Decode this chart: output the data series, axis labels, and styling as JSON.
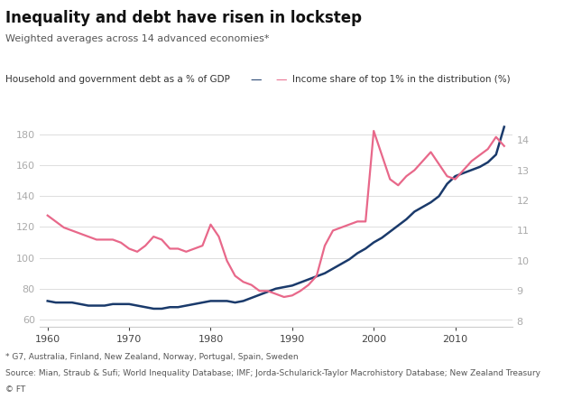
{
  "title": "Inequality and debt have risen in lockstep",
  "subtitle": "Weighted averages across 14 advanced economies*",
  "left_label": "Household and government debt as a % of GDP",
  "right_label": "Income share of top 1% in the distribution (%)",
  "footnote1": "* G7, Australia, Finland, New Zealand, Norway, Portugal, Spain, Sweden",
  "footnote2": "Source: Mian, Straub & Sufi; World Inequality Database; IMF; Jorda-Schularick-Taylor Macrohistory Database; New Zealand Treasury",
  "footnote3": "© FT",
  "debt_color": "#1a3a6b",
  "inequality_color": "#e8688a",
  "background_color": "#ffffff",
  "grid_color": "#dddddd",
  "ylim_left": [
    55,
    200
  ],
  "ylim_right": [
    7.8,
    15.2
  ],
  "yticks_left": [
    60,
    80,
    100,
    120,
    140,
    160,
    180
  ],
  "yticks_right": [
    8,
    9,
    10,
    11,
    12,
    13,
    14
  ],
  "xlim": [
    1959,
    2017
  ],
  "xticks": [
    1960,
    1970,
    1980,
    1990,
    2000,
    2010
  ],
  "debt_years": [
    1960,
    1961,
    1962,
    1963,
    1964,
    1965,
    1966,
    1967,
    1968,
    1969,
    1970,
    1971,
    1972,
    1973,
    1974,
    1975,
    1976,
    1977,
    1978,
    1979,
    1980,
    1981,
    1982,
    1983,
    1984,
    1985,
    1986,
    1987,
    1988,
    1989,
    1990,
    1991,
    1992,
    1993,
    1994,
    1995,
    1996,
    1997,
    1998,
    1999,
    2000,
    2001,
    2002,
    2003,
    2004,
    2005,
    2006,
    2007,
    2008,
    2009,
    2010,
    2011,
    2012,
    2013,
    2014,
    2015,
    2016
  ],
  "debt_values": [
    72,
    71,
    71,
    71,
    70,
    69,
    69,
    69,
    70,
    70,
    70,
    69,
    68,
    67,
    67,
    68,
    68,
    69,
    70,
    71,
    72,
    72,
    72,
    71,
    72,
    74,
    76,
    78,
    80,
    81,
    82,
    84,
    86,
    88,
    90,
    93,
    96,
    99,
    103,
    106,
    110,
    113,
    117,
    121,
    125,
    130,
    133,
    136,
    140,
    148,
    153,
    155,
    157,
    159,
    162,
    167,
    185
  ],
  "ineq_years": [
    1960,
    1961,
    1962,
    1963,
    1964,
    1965,
    1966,
    1967,
    1968,
    1969,
    1970,
    1971,
    1972,
    1973,
    1974,
    1975,
    1976,
    1977,
    1978,
    1979,
    1980,
    1981,
    1982,
    1983,
    1984,
    1985,
    1986,
    1987,
    1988,
    1989,
    1990,
    1991,
    1992,
    1993,
    1994,
    1995,
    1996,
    1997,
    1998,
    1999,
    2000,
    2001,
    2002,
    2003,
    2004,
    2005,
    2006,
    2007,
    2008,
    2009,
    2010,
    2011,
    2012,
    2013,
    2014,
    2015,
    2016
  ],
  "ineq_values": [
    11.5,
    11.3,
    11.1,
    11.0,
    10.9,
    10.8,
    10.7,
    10.7,
    10.7,
    10.6,
    10.4,
    10.3,
    10.5,
    10.8,
    10.7,
    10.4,
    10.4,
    10.3,
    10.4,
    10.5,
    11.2,
    10.8,
    10.0,
    9.5,
    9.3,
    9.2,
    9.0,
    9.0,
    8.9,
    8.8,
    8.85,
    9.0,
    9.2,
    9.5,
    10.5,
    11.0,
    11.1,
    11.2,
    11.3,
    11.3,
    14.3,
    13.5,
    12.7,
    12.5,
    12.8,
    13.0,
    13.3,
    13.6,
    13.2,
    12.8,
    12.7,
    13.0,
    13.3,
    13.5,
    13.7,
    14.1,
    13.8
  ]
}
